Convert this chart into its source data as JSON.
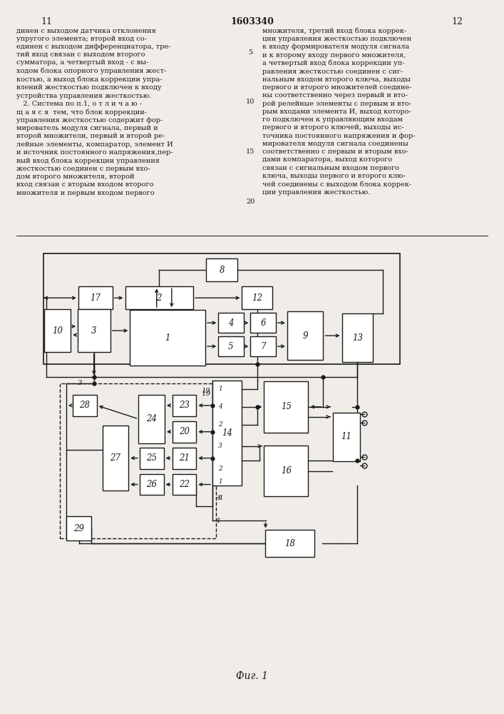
{
  "title": "Фиг. 1",
  "bg_color": "#f0ede8",
  "box_color": "#ffffff",
  "line_color": "#1a1a1a",
  "text_color": "#1a1a1a",
  "font_size": 9,
  "left_text": "динен с выходом датчика отклонения\nупругого элемента; второй вход со-\nединен с выходом дифференциатора, тре-\nтий вход связан с выходом второго\nсумматора, а четвертый вход - с вы-\nходом блока опорного управления жест-\nкостью, а выход блока коррекции упра-\nвлений жесткостью подключен к входу\nустройства управления жесткостью.\n   2. Система по п.1, о т л и ч а ю -\nщ а я с я  тем, что блок коррекции-\nуправления жесткостью содержит фор-\nмирователь модуля сигнала, первый и\nвторой множители, первый и второй ре-\nлейные элементы, компаратор, элемент И\nи источник постоянного напряжения,пер-\nвый вход блока коррекции управления\nжесткостью соединен с первым вхо-\nдом второго множителя, второй\nвход связан с вторым входом второго\nмножителя и первым входом первого",
  "right_text": "множителя, третий вход блока коррек-\nции управления жесткостью подключен\nк входу формирователя модуля сигнала\nи к второму входу первого множителя,\nа четвертый вход блока коррекции уп-\nравления жесткостью соединен с сиг-\nнальным входом второго ключа, выходы\nпервого и второго множителей соедине-\nны соответственно через первый и вто-\nрой релейные элементы с первым и вто-\nрым входами элемента И, выход которо-\nго подключен к управляющим входам\nпервого и второго ключей, выходы ис-\nточника постоянного напряжения и фор-\nмирователя модуля сигнала соединены\nсоответственно с первым и вторым вхо-\nдами компаратора, выход которого\nсвязан с сигнальным входом первого\nключа, выходы первого и второго клю-\nчей соединены с выходом блока коррек-\nции управления жесткостью."
}
